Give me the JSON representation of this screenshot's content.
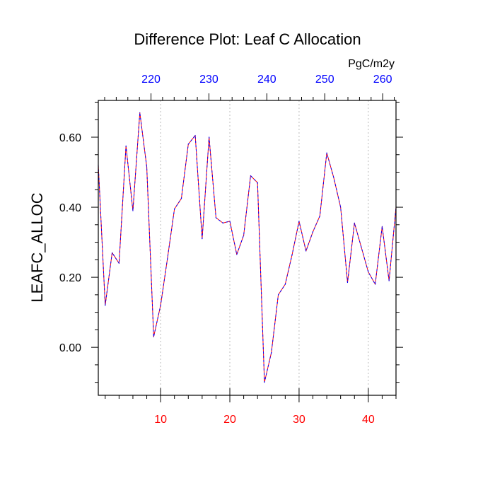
{
  "chart_data": {
    "type": "line",
    "title": "Difference Plot: Leaf C Allocation",
    "units": "PgC/m2y",
    "ylabel": "LEAFC_ALLOC",
    "xlabel": "",
    "xlim": [
      1,
      44
    ],
    "ylim": [
      -0.137,
      0.705
    ],
    "x_ticks": [
      10,
      20,
      30,
      40
    ],
    "y_ticks": [
      0.0,
      0.2,
      0.4,
      0.6
    ],
    "y_tick_labels": [
      "0.00",
      "0.20",
      "0.40",
      "0.60"
    ],
    "top_axis": {
      "ticks": [
        220,
        230,
        240,
        250,
        260
      ],
      "range": [
        210.9,
        262.3
      ]
    },
    "grid": "vertical dotted",
    "colors": {
      "bottom_axis_labels": "#ff0000",
      "top_axis_labels": "#0000ff",
      "line_primary": "#ff0000",
      "line_secondary": "#0000ff",
      "grid": "#bbbbbb",
      "axis": "#000000"
    },
    "series": [
      {
        "x": [
          1,
          2,
          3,
          4,
          5,
          6,
          7,
          8,
          9,
          10,
          11,
          12,
          13,
          14,
          15,
          16,
          17,
          18,
          19,
          20,
          21,
          22,
          23,
          24,
          25,
          26,
          27,
          28,
          29,
          30,
          31,
          32,
          33,
          34,
          35,
          36,
          37,
          38,
          39,
          40,
          41,
          42,
          43,
          44
        ],
        "values": [
          0.52,
          0.12,
          0.27,
          0.24,
          0.575,
          0.39,
          0.67,
          0.515,
          0.03,
          0.12,
          0.255,
          0.395,
          0.425,
          0.58,
          0.605,
          0.31,
          0.6,
          0.37,
          0.355,
          0.36,
          0.265,
          0.32,
          0.49,
          0.47,
          -0.1,
          -0.015,
          0.15,
          0.18,
          0.265,
          0.36,
          0.275,
          0.33,
          0.375,
          0.555,
          0.485,
          0.4,
          0.185,
          0.355,
          0.285,
          0.215,
          0.18,
          0.345,
          0.19,
          0.4
        ]
      }
    ]
  }
}
